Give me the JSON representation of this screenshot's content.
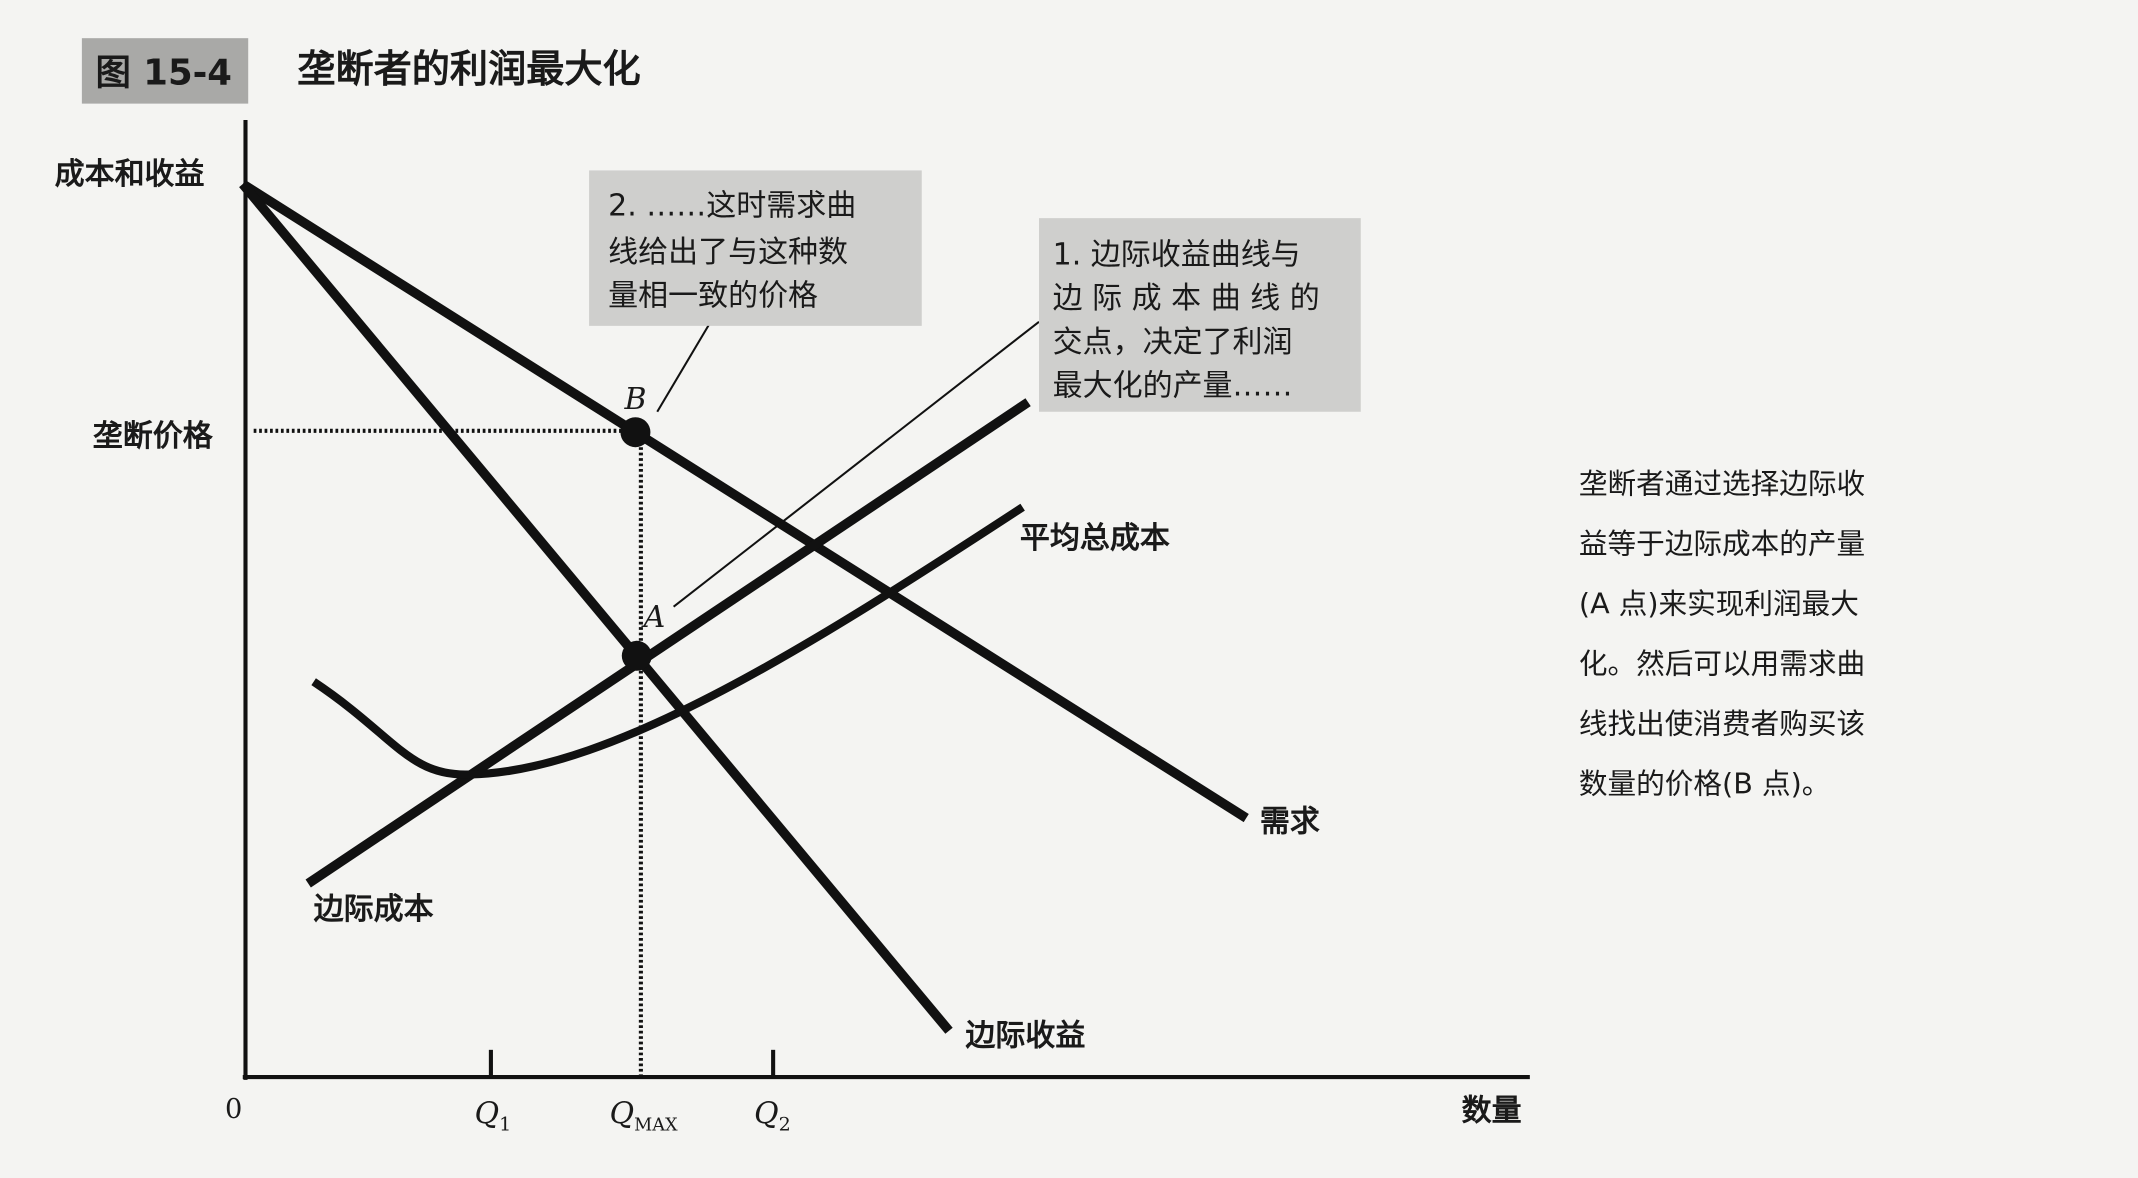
{
  "figure": {
    "number": "图 15-4",
    "title": "垄断者的利润最大化"
  },
  "axes": {
    "y_label": "成本和收益",
    "x_label": "数量",
    "origin": "0",
    "y_marks": [
      "垄断价格"
    ],
    "x_ticks": [
      {
        "main": "Q",
        "sub": "1"
      },
      {
        "main": "Q",
        "sub": "MAX"
      },
      {
        "main": "Q",
        "sub": "2"
      }
    ]
  },
  "curves": {
    "demand": "需求",
    "marginal_revenue": "边际收益",
    "marginal_cost": "边际成本",
    "average_total_cost": "平均总成本"
  },
  "points": {
    "a": "A",
    "b": "B"
  },
  "callouts": [
    {
      "lines": [
        "2. ……这时需求曲",
        "线给出了与这种数",
        "量相一致的价格"
      ]
    },
    {
      "lines": [
        "1. 边际收益曲线与",
        "边 际 成 本 曲 线 的",
        "交点，决定了利润",
        "最大化的产量……"
      ]
    }
  ],
  "caption": {
    "lines": [
      "垄断者通过选择边际收",
      "益等于边际成本的产量",
      "(A 点)来实现利润最大",
      "化。然后可以用需求曲",
      "线找出使消费者购买该",
      "数量的价格(B 点)。"
    ]
  },
  "colors": {
    "ink": "#111111",
    "callout_bg": "#cfcfcd",
    "title_bg": "#a9a9a7",
    "paper": "#f4f4f2"
  }
}
